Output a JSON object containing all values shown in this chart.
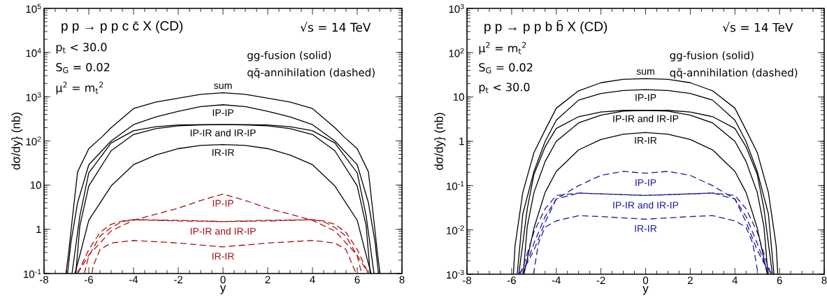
{
  "chart_data": [
    {
      "type": "line",
      "title": "p p → p p c c̄ X (CD)",
      "xlabel": "y",
      "ylabel": "dσ/dy}    (nb)",
      "log": "y",
      "line_style": "solid",
      "annotations": [
        "√s = 14 TeV",
        "gg-fusion (solid)",
        "qq̄-annihilation (dashed)",
        "p$_{t}$ < 30.0",
        "S$_{G}$ = 0.02",
        "μ$^{2}$ = m$_{t}$$^{2}$"
      ],
      "xlim": [
        -8,
        8
      ],
      "xticks": [
        -8,
        -6,
        -4,
        -2,
        0,
        2,
        4,
        6,
        8
      ],
      "ylim": [
        0.1,
        100000
      ],
      "yticks": [
        {
          "value": 0.1,
          "label": "10$^{-1}$"
        },
        1,
        10,
        {
          "value": 100,
          "label": "10$^{2}$"
        },
        {
          "value": 1000,
          "label": "10$^{3}$"
        },
        {
          "value": 10000,
          "label": "10$^{4}$"
        },
        {
          "value": 100000,
          "label": "10$^{5}$"
        }
      ],
      "series": [
        {
          "name": "sum",
          "color": "#000000",
          "x": [
            -7.02,
            -6.9,
            -6.75,
            -6.5,
            -6,
            -5.4,
            -5,
            -4,
            -3,
            -2,
            -1,
            0,
            1,
            2,
            3,
            4,
            5,
            5.4,
            6,
            6.5,
            6.75,
            6.9,
            7.02
          ],
          "values": [
            0.1,
            0.3,
            1.5,
            20,
            67,
            125,
            200,
            540,
            760,
            930,
            1130,
            1230,
            1130,
            930,
            760,
            540,
            200,
            125,
            67,
            20,
            1.5,
            0.3,
            0.1
          ]
        },
        {
          "name": "IP-IP",
          "color": "#000000",
          "x": [
            -6.95,
            -6.8,
            -6.5,
            -6,
            -5,
            -4,
            -3,
            -2,
            -1,
            0,
            1,
            2,
            3,
            4,
            5,
            6,
            6.5,
            6.8,
            6.95
          ],
          "values": [
            0.1,
            0.5,
            4,
            29,
            100,
            234,
            350,
            470,
            600,
            660,
            600,
            470,
            350,
            234,
            100,
            29,
            4,
            0.5,
            0.1
          ]
        },
        {
          "name": "IP-IR and IR-IP",
          "color": "#000000",
          "x": [
            -6.75,
            -6.4,
            -6,
            -5,
            -4,
            -3,
            -2,
            -1,
            0,
            1,
            2,
            3,
            4,
            5,
            6,
            6.4,
            6.58
          ],
          "values": [
            0.1,
            2,
            19,
            90,
            170,
            210,
            230,
            235,
            234,
            230,
            220,
            190,
            140,
            60,
            9.6,
            1.2,
            0.1
          ]
        },
        {
          "color": "#000000",
          "x": [
            -6.58,
            -6.4,
            -6,
            -5,
            -4,
            -3,
            -2,
            -1,
            0,
            1,
            2,
            3,
            4,
            5,
            6,
            6.4,
            6.75
          ],
          "values": [
            0.1,
            1.2,
            9.6,
            60,
            140,
            190,
            220,
            230,
            234,
            235,
            230,
            210,
            170,
            90,
            19,
            2,
            0.1
          ]
        },
        {
          "name": "IR-IR",
          "color": "#000000",
          "x": [
            -6.62,
            -6.4,
            -6,
            -5,
            -4,
            -3,
            -2,
            -1,
            0,
            1,
            2,
            3,
            4,
            5,
            6,
            6.4,
            6.62
          ],
          "values": [
            0.1,
            0.26,
            1.6,
            9.6,
            29,
            48,
            67,
            79,
            83,
            79,
            67,
            48,
            29,
            9.6,
            1.6,
            0.26,
            0.1
          ]
        },
        {
          "name": "IP-IP",
          "color": "#aa1111",
          "line_style": "dashed",
          "x": [
            -6.5,
            -6,
            -5,
            -4,
            -3,
            -2,
            -1,
            0,
            1,
            2,
            3,
            4,
            5,
            6,
            6.5
          ],
          "values": [
            0.1,
            0.26,
            0.92,
            1.6,
            2.2,
            3.0,
            4.5,
            6.3,
            4.5,
            3.0,
            2.2,
            1.6,
            0.92,
            0.26,
            0.1
          ]
        },
        {
          "name": "IP-IR and IR-IP",
          "color": "#aa1111",
          "line_style": "dashed",
          "x": [
            -6.2,
            -6,
            -5.5,
            -5,
            -4.5,
            -4,
            -2,
            0,
            2,
            4,
            4.5,
            5,
            5.5,
            6,
            6.5
          ],
          "values": [
            0.1,
            0.25,
            0.7,
            1.1,
            1.5,
            1.65,
            1.6,
            1.5,
            1.55,
            1.65,
            1.55,
            1.3,
            0.85,
            0.35,
            0.1
          ]
        },
        {
          "color": "#aa1111",
          "line_style": "dashed",
          "x": [
            -6.5,
            -6,
            -5.5,
            -5,
            -4.5,
            -4,
            -2,
            0,
            2,
            4,
            4.5,
            5,
            5.5,
            6,
            6.2
          ],
          "values": [
            0.1,
            0.35,
            0.85,
            1.3,
            1.55,
            1.65,
            1.55,
            1.5,
            1.6,
            1.65,
            1.5,
            1.1,
            0.7,
            0.25,
            0.1
          ]
        },
        {
          "name": "IR-IR",
          "color": "#aa1111",
          "line_style": "dashed",
          "x": [
            -5.86,
            -5.8,
            -5.5,
            -5,
            -4,
            -2,
            0,
            2,
            4,
            5,
            5.5,
            5.8,
            5.96
          ],
          "values": [
            0.1,
            0.15,
            0.35,
            0.49,
            0.56,
            0.49,
            0.4,
            0.49,
            0.56,
            0.49,
            0.35,
            0.15,
            0.1
          ]
        }
      ]
    },
    {
      "type": "line",
      "title": "p p → p p b b̄ X (CD)",
      "xlabel": "y",
      "ylabel": "dσ/dy}    (nb)",
      "log": "y",
      "line_style": "solid",
      "annotations": [
        "√s = 14 TeV",
        "gg-fusion (solid)",
        "qq̄-annihilation (dashed)",
        "μ$^{2}$ = m$_{t}$$^{2}$",
        "S$_{G}$ = 0.02",
        "p$_{t}$ < 30.0"
      ],
      "xlim": [
        -8,
        8
      ],
      "xticks": [
        -8,
        -6,
        -4,
        -2,
        0,
        2,
        4,
        6,
        8
      ],
      "ylim": [
        0.001,
        1000
      ],
      "yticks": [
        {
          "value": 0.001,
          "label": "10$^{-3}$"
        },
        {
          "value": 0.01,
          "label": "10$^{-2}$"
        },
        {
          "value": 0.1,
          "label": "10$^{-1}$"
        },
        1,
        10,
        {
          "value": 100,
          "label": "10$^{2}$"
        },
        {
          "value": 1000,
          "label": "10$^{3}$"
        }
      ],
      "series": [
        {
          "name": "sum",
          "color": "#000000",
          "x": [
            -5.92,
            -5.85,
            -5.5,
            -5,
            -4.5,
            -4,
            -3,
            -2,
            -1,
            0,
            1,
            2,
            3,
            4,
            4.5,
            5,
            5.5,
            5.85,
            5.92
          ],
          "values": [
            0.001,
            0.0043,
            0.07,
            0.56,
            1.8,
            5.6,
            13.8,
            21,
            25,
            26,
            25,
            21,
            13.8,
            5.6,
            1.8,
            0.56,
            0.07,
            0.0043,
            0.001
          ]
        },
        {
          "name": "IP-IP",
          "color": "#000000",
          "x": [
            -5.75,
            -5.5,
            -5,
            -4.5,
            -4,
            -3,
            -2,
            -1,
            0,
            1,
            2,
            3,
            4,
            4.5,
            5,
            5.5,
            5.75
          ],
          "values": [
            0.001,
            0.023,
            0.21,
            0.99,
            3.0,
            8.5,
            12,
            14,
            14.7,
            14,
            12,
            8.5,
            3.0,
            0.99,
            0.21,
            0.023,
            0.001
          ]
        },
        {
          "name": "IP-IR and IR-IP",
          "color": "#000000",
          "x": [
            -5.68,
            -5.3,
            -5,
            -4.5,
            -4,
            -3,
            -2,
            -1,
            0,
            1,
            2,
            3,
            4,
            4.5,
            5,
            5.3,
            5.48
          ],
          "values": [
            0.001,
            0.03,
            0.18,
            0.75,
            1.95,
            3.6,
            4.6,
            5,
            5,
            4.8,
            3.9,
            2.6,
            1.0,
            0.35,
            0.07,
            0.012,
            0.001
          ]
        },
        {
          "color": "#000000",
          "x": [
            -5.48,
            -5.3,
            -5,
            -4.5,
            -4,
            -3,
            -2,
            -1,
            0,
            1,
            2,
            3,
            4,
            4.5,
            5,
            5.3,
            5.68
          ],
          "values": [
            0.001,
            0.012,
            0.07,
            0.35,
            1.0,
            2.6,
            3.9,
            4.8,
            5,
            5,
            4.6,
            3.6,
            1.95,
            0.75,
            0.18,
            0.03,
            0.001
          ]
        },
        {
          "name": "IR-IR",
          "color": "#000000",
          "x": [
            -5.45,
            -5,
            -4.5,
            -4,
            -3,
            -2,
            -1,
            0,
            1,
            2,
            3,
            4,
            4.5,
            5,
            5.45
          ],
          "values": [
            0.001,
            0.011,
            0.07,
            0.21,
            0.64,
            1.1,
            1.45,
            1.58,
            1.45,
            1.1,
            0.64,
            0.21,
            0.07,
            0.011,
            0.001
          ]
        },
        {
          "name": "IP-IP",
          "color": "#1a1aa0",
          "line_style": "dashed",
          "x": [
            -5.68,
            -5.3,
            -5,
            -4.5,
            -4,
            -3,
            -2,
            -1,
            0,
            1,
            2,
            3,
            4,
            4.5,
            5,
            5.3,
            5.68
          ],
          "values": [
            0.001,
            0.0018,
            0.0035,
            0.015,
            0.05,
            0.1,
            0.17,
            0.21,
            0.19,
            0.21,
            0.17,
            0.1,
            0.05,
            0.015,
            0.0035,
            0.0018,
            0.001
          ]
        },
        {
          "name": "IP-IR and IR-IP",
          "color": "#1a1aa0",
          "line_style": "dashed",
          "x": [
            -5.5,
            -5,
            -4.5,
            -4,
            -3,
            -2,
            0,
            2,
            3,
            4,
            4.5,
            5,
            5.4,
            5.62
          ],
          "values": [
            0.001,
            0.005,
            0.02,
            0.05,
            0.068,
            0.065,
            0.06,
            0.065,
            0.068,
            0.06,
            0.03,
            0.009,
            0.002,
            0.001
          ]
        },
        {
          "color": "#1a1aa0",
          "line_style": "dashed",
          "x": [
            -5.62,
            -5.4,
            -5,
            -4.5,
            -4,
            -3,
            -2,
            0,
            2,
            3,
            4,
            4.5,
            5,
            5.5
          ],
          "values": [
            0.001,
            0.002,
            0.009,
            0.03,
            0.06,
            0.068,
            0.065,
            0.06,
            0.065,
            0.068,
            0.05,
            0.02,
            0.005,
            0.001
          ]
        },
        {
          "name": "IR-IR",
          "color": "#1a1aa0",
          "line_style": "dashed",
          "x": [
            -5.02,
            -4.8,
            -4.5,
            -4,
            -3,
            -2,
            0,
            2,
            3,
            4,
            4.5,
            4.8,
            5.04
          ],
          "values": [
            0.001,
            0.005,
            0.0116,
            0.016,
            0.021,
            0.02,
            0.0174,
            0.02,
            0.021,
            0.016,
            0.0116,
            0.005,
            0.001
          ]
        }
      ]
    }
  ]
}
